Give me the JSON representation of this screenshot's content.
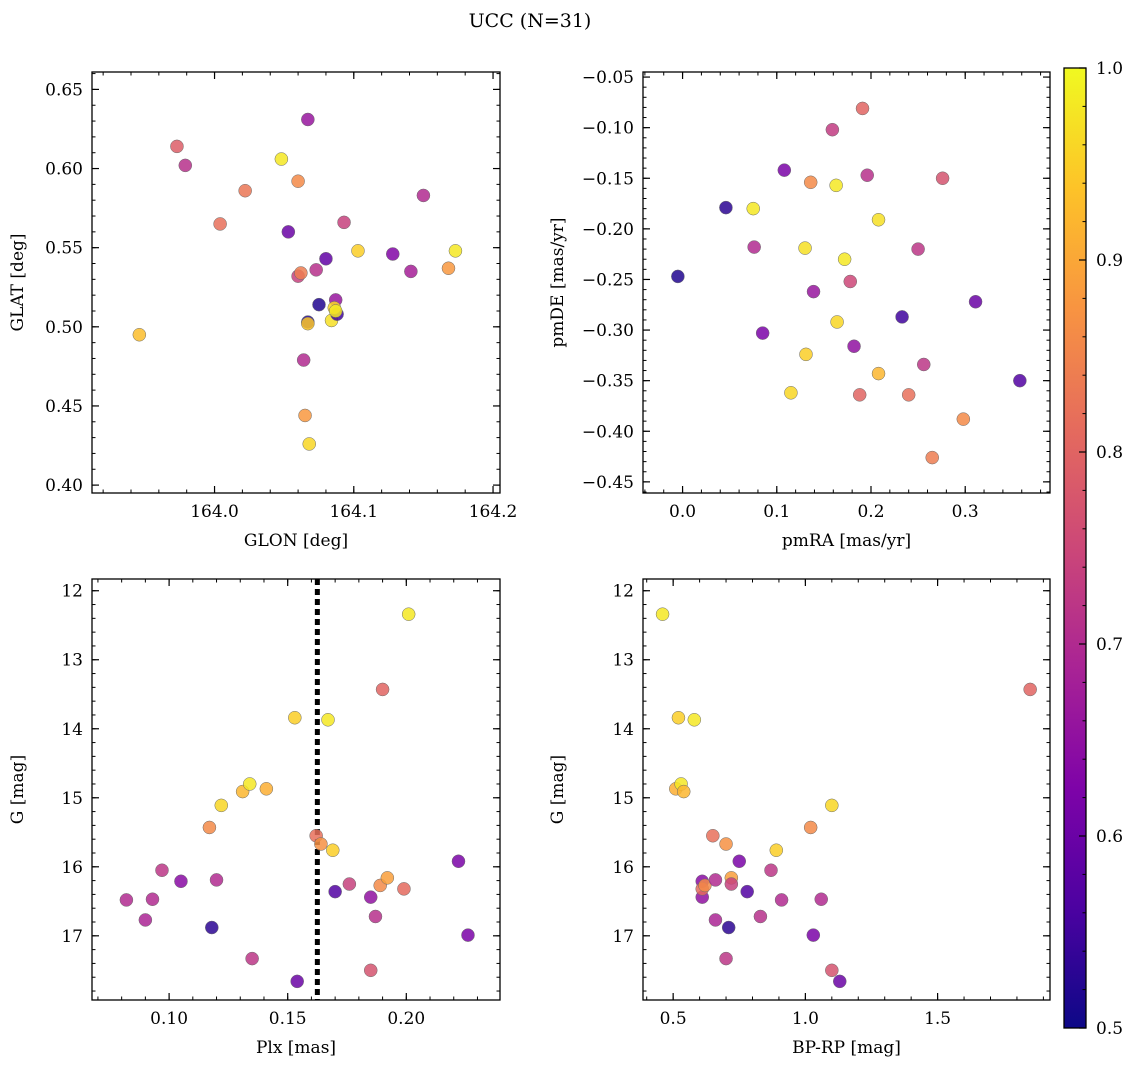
{
  "title": "UCC (N=31)",
  "colorbar": {
    "min": 0.5,
    "max": 1.0,
    "ticks": [
      "0.5",
      "0.6",
      "0.7",
      "0.8",
      "0.9",
      "1.0"
    ],
    "colormap": "plasma"
  },
  "chart_data": [
    {
      "type": "scatter",
      "id": "glon-glat",
      "xlabel": "GLON [deg]",
      "ylabel": "GLAT [deg]",
      "xlim": [
        163.912,
        164.205
      ],
      "ylim": [
        0.395,
        0.661
      ],
      "xticks": [
        {
          "v": 164.0,
          "label": "164.0"
        },
        {
          "v": 164.1,
          "label": "164.1"
        },
        {
          "v": 164.2,
          "label": "164.2"
        }
      ],
      "yticks": [
        {
          "v": 0.4,
          "label": "0.40"
        },
        {
          "v": 0.45,
          "label": "0.45"
        },
        {
          "v": 0.5,
          "label": "0.50"
        },
        {
          "v": 0.55,
          "label": "0.55"
        },
        {
          "v": 0.6,
          "label": "0.60"
        },
        {
          "v": 0.65,
          "label": "0.65"
        }
      ],
      "points": [
        [
          163.946,
          0.495,
          0.93
        ],
        [
          163.973,
          0.614,
          0.79
        ],
        [
          163.979,
          0.602,
          0.71
        ],
        [
          164.004,
          0.565,
          0.82
        ],
        [
          164.022,
          0.586,
          0.83
        ],
        [
          164.048,
          0.606,
          0.98
        ],
        [
          164.053,
          0.56,
          0.6
        ],
        [
          164.06,
          0.592,
          0.86
        ],
        [
          164.06,
          0.532,
          0.74
        ],
        [
          164.062,
          0.534,
          0.84
        ],
        [
          164.064,
          0.479,
          0.7
        ],
        [
          164.065,
          0.444,
          0.88
        ],
        [
          164.067,
          0.631,
          0.66
        ],
        [
          164.067,
          0.503,
          0.52
        ],
        [
          164.067,
          0.502,
          0.94
        ],
        [
          164.068,
          0.426,
          0.96
        ],
        [
          164.073,
          0.536,
          0.71
        ],
        [
          164.075,
          0.514,
          0.52
        ],
        [
          164.08,
          0.543,
          0.59
        ],
        [
          164.084,
          0.504,
          0.97
        ],
        [
          164.087,
          0.517,
          0.66
        ],
        [
          164.088,
          0.508,
          0.55
        ],
        [
          164.086,
          0.512,
          0.96
        ],
        [
          164.087,
          0.51,
          0.98
        ],
        [
          164.093,
          0.566,
          0.74
        ],
        [
          164.103,
          0.548,
          0.95
        ],
        [
          164.128,
          0.546,
          0.63
        ],
        [
          164.141,
          0.535,
          0.68
        ],
        [
          164.15,
          0.583,
          0.7
        ],
        [
          164.168,
          0.537,
          0.88
        ],
        [
          164.173,
          0.548,
          0.98
        ]
      ]
    },
    {
      "type": "scatter",
      "id": "pm",
      "xlabel": "pmRA [mas/yr]",
      "ylabel": "pmDE [mas/yr]",
      "xlim": [
        -0.042,
        0.39
      ],
      "ylim": [
        -0.461,
        -0.045
      ],
      "xticks": [
        {
          "v": 0.0,
          "label": "0.0"
        },
        {
          "v": 0.1,
          "label": "0.1"
        },
        {
          "v": 0.2,
          "label": "0.2"
        },
        {
          "v": 0.3,
          "label": "0.3"
        }
      ],
      "yticks": [
        {
          "v": -0.45,
          "label": "−0.45"
        },
        {
          "v": -0.4,
          "label": "−0.40"
        },
        {
          "v": -0.35,
          "label": "−0.35"
        },
        {
          "v": -0.3,
          "label": "−0.30"
        },
        {
          "v": -0.25,
          "label": "−0.25"
        },
        {
          "v": -0.2,
          "label": "−0.20"
        },
        {
          "v": -0.15,
          "label": "−0.15"
        },
        {
          "v": -0.1,
          "label": "−0.10"
        },
        {
          "v": -0.05,
          "label": "−0.05"
        }
      ],
      "points": [
        [
          -0.005,
          -0.247,
          0.52
        ],
        [
          0.046,
          -0.179,
          0.53
        ],
        [
          0.075,
          -0.18,
          0.98
        ],
        [
          0.076,
          -0.218,
          0.7
        ],
        [
          0.085,
          -0.303,
          0.62
        ],
        [
          0.108,
          -0.142,
          0.62
        ],
        [
          0.115,
          -0.362,
          0.96
        ],
        [
          0.13,
          -0.219,
          0.97
        ],
        [
          0.131,
          -0.324,
          0.95
        ],
        [
          0.136,
          -0.154,
          0.86
        ],
        [
          0.139,
          -0.262,
          0.66
        ],
        [
          0.159,
          -0.102,
          0.73
        ],
        [
          0.163,
          -0.157,
          0.98
        ],
        [
          0.172,
          -0.23,
          0.98
        ],
        [
          0.178,
          -0.252,
          0.75
        ],
        [
          0.182,
          -0.316,
          0.65
        ],
        [
          0.188,
          -0.364,
          0.8
        ],
        [
          0.191,
          -0.081,
          0.8
        ],
        [
          0.164,
          -0.292,
          0.96
        ],
        [
          0.196,
          -0.147,
          0.71
        ],
        [
          0.208,
          -0.343,
          0.92
        ],
        [
          0.208,
          -0.191,
          0.97
        ],
        [
          0.233,
          -0.287,
          0.55
        ],
        [
          0.24,
          -0.364,
          0.82
        ],
        [
          0.25,
          -0.22,
          0.72
        ],
        [
          0.256,
          -0.334,
          0.72
        ],
        [
          0.265,
          -0.426,
          0.84
        ],
        [
          0.276,
          -0.15,
          0.77
        ],
        [
          0.298,
          -0.388,
          0.86
        ],
        [
          0.311,
          -0.272,
          0.6
        ],
        [
          0.358,
          -0.35,
          0.57
        ]
      ]
    },
    {
      "type": "scatter",
      "id": "plx-g",
      "xlabel": "Plx [mas]",
      "ylabel": "G [mag]",
      "xlim": [
        0.0675,
        0.2395
      ],
      "ylim": [
        17.93,
        11.83
      ],
      "vline": {
        "x": 0.1625,
        "style": "dotted"
      },
      "xticks": [
        {
          "v": 0.1,
          "label": "0.10"
        },
        {
          "v": 0.15,
          "label": "0.15"
        },
        {
          "v": 0.2,
          "label": "0.20"
        }
      ],
      "yticks": [
        {
          "v": 12,
          "label": "12"
        },
        {
          "v": 13,
          "label": "13"
        },
        {
          "v": 14,
          "label": "14"
        },
        {
          "v": 15,
          "label": "15"
        },
        {
          "v": 16,
          "label": "16"
        },
        {
          "v": 17,
          "label": "17"
        }
      ],
      "points": [
        [
          0.082,
          16.48,
          0.7
        ],
        [
          0.09,
          16.77,
          0.69
        ],
        [
          0.093,
          16.47,
          0.7
        ],
        [
          0.097,
          16.05,
          0.72
        ],
        [
          0.105,
          16.21,
          0.64
        ],
        [
          0.117,
          15.43,
          0.86
        ],
        [
          0.118,
          16.88,
          0.53
        ],
        [
          0.12,
          16.19,
          0.7
        ],
        [
          0.122,
          15.11,
          0.96
        ],
        [
          0.131,
          14.91,
          0.92
        ],
        [
          0.134,
          14.8,
          0.98
        ],
        [
          0.135,
          17.33,
          0.72
        ],
        [
          0.141,
          14.87,
          0.91
        ],
        [
          0.153,
          13.84,
          0.95
        ],
        [
          0.154,
          17.66,
          0.6
        ],
        [
          0.162,
          15.55,
          0.82
        ],
        [
          0.164,
          15.67,
          0.87
        ],
        [
          0.167,
          13.87,
          0.98
        ],
        [
          0.169,
          15.76,
          0.95
        ],
        [
          0.17,
          16.36,
          0.57
        ],
        [
          0.176,
          16.25,
          0.74
        ],
        [
          0.185,
          16.44,
          0.65
        ],
        [
          0.185,
          17.5,
          0.77
        ],
        [
          0.187,
          16.72,
          0.71
        ],
        [
          0.189,
          16.27,
          0.86
        ],
        [
          0.19,
          13.43,
          0.8
        ],
        [
          0.192,
          16.16,
          0.89
        ],
        [
          0.199,
          16.32,
          0.81
        ],
        [
          0.201,
          12.34,
          0.98
        ],
        [
          0.222,
          15.92,
          0.62
        ],
        [
          0.226,
          16.99,
          0.62
        ]
      ]
    },
    {
      "type": "scatter",
      "id": "cmd",
      "xlabel": "BP-RP [mag]",
      "ylabel": "G [mag]",
      "xlim": [
        0.386,
        1.925
      ],
      "ylim": [
        17.93,
        11.83
      ],
      "xticks": [
        {
          "v": 0.5,
          "label": "0.5"
        },
        {
          "v": 1.0,
          "label": "1.0"
        },
        {
          "v": 1.5,
          "label": "1.5"
        }
      ],
      "yticks": [
        {
          "v": 12,
          "label": "12"
        },
        {
          "v": 13,
          "label": "13"
        },
        {
          "v": 14,
          "label": "14"
        },
        {
          "v": 15,
          "label": "15"
        },
        {
          "v": 16,
          "label": "16"
        },
        {
          "v": 17,
          "label": "17"
        }
      ],
      "points": [
        [
          0.46,
          12.34,
          0.98
        ],
        [
          0.52,
          13.84,
          0.95
        ],
        [
          0.58,
          13.87,
          0.98
        ],
        [
          0.51,
          14.87,
          0.91
        ],
        [
          0.53,
          14.8,
          0.98
        ],
        [
          0.54,
          14.91,
          0.92
        ],
        [
          0.61,
          16.21,
          0.64
        ],
        [
          0.61,
          16.44,
          0.65
        ],
        [
          0.61,
          16.32,
          0.81
        ],
        [
          0.62,
          16.27,
          0.86
        ],
        [
          0.65,
          15.55,
          0.82
        ],
        [
          0.66,
          16.77,
          0.69
        ],
        [
          0.66,
          16.19,
          0.7
        ],
        [
          0.7,
          15.67,
          0.87
        ],
        [
          0.7,
          17.33,
          0.72
        ],
        [
          0.71,
          16.88,
          0.53
        ],
        [
          0.72,
          16.16,
          0.89
        ],
        [
          0.72,
          16.25,
          0.74
        ],
        [
          0.75,
          15.92,
          0.62
        ],
        [
          0.78,
          16.36,
          0.57
        ],
        [
          0.83,
          16.72,
          0.71
        ],
        [
          0.87,
          16.05,
          0.72
        ],
        [
          0.89,
          15.76,
          0.95
        ],
        [
          0.91,
          16.48,
          0.7
        ],
        [
          1.02,
          15.43,
          0.86
        ],
        [
          1.03,
          16.99,
          0.62
        ],
        [
          1.06,
          16.47,
          0.7
        ],
        [
          1.1,
          15.11,
          0.96
        ],
        [
          1.1,
          17.5,
          0.77
        ],
        [
          1.13,
          17.66,
          0.6
        ],
        [
          1.85,
          13.43,
          0.8
        ]
      ]
    }
  ]
}
